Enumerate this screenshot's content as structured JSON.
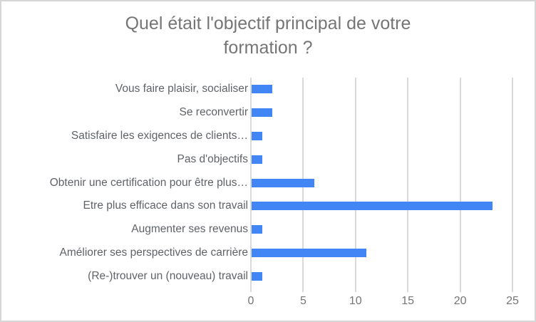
{
  "chart_data": {
    "type": "bar",
    "orientation": "horizontal",
    "title": "Quel était l'objectif principal de votre formation ?",
    "categories": [
      "Vous faire plaisir, socialiser",
      "Se reconvertir",
      "Satisfaire les exigences de clients…",
      "Pas d'objectifs",
      "Obtenir une certification pour être plus…",
      "Etre plus efficace dans son travail",
      "Augmenter ses revenus",
      "Améliorer ses perspectives de carrière",
      "(Re-)trouver un (nouveau) travail"
    ],
    "values": [
      2,
      2,
      1,
      1,
      6,
      23,
      1,
      11,
      1
    ],
    "xlabel": "",
    "ylabel": "",
    "xlim": [
      0,
      25
    ],
    "xticks": [
      0,
      5,
      10,
      15,
      20,
      25
    ],
    "grid": "vertical-gridlines",
    "legend": "none",
    "colors": {
      "bar": "#4285f4",
      "gridline": "#d9d9d9",
      "title_text": "#757575",
      "category_label": "#5f6368",
      "tick_label": "#757575",
      "background": "#ffffff",
      "border": "#d6d6d6"
    }
  }
}
